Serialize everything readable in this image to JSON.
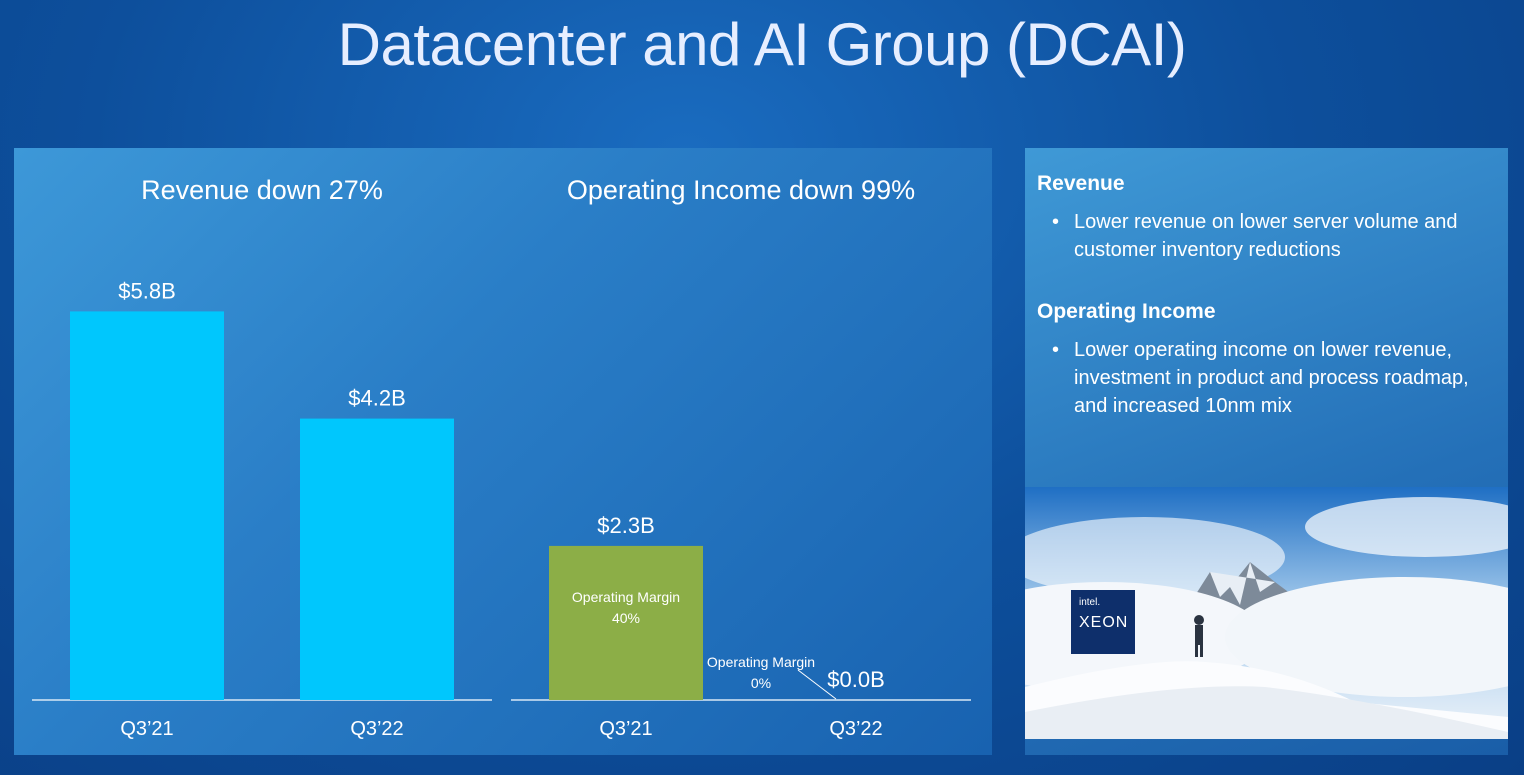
{
  "title": "Datacenter and AI Group (DCAI)",
  "chart_data": [
    {
      "type": "bar",
      "title": "Revenue down 27%",
      "categories": [
        "Q3’21",
        "Q3’22"
      ],
      "values": [
        5.8,
        4.2
      ],
      "value_labels": [
        "$5.8B",
        "$4.2B"
      ],
      "color": "#00c7fd"
    },
    {
      "type": "bar",
      "title": "Operating Income down 99%",
      "categories": [
        "Q3’21",
        "Q3’22"
      ],
      "values": [
        2.3,
        0.0
      ],
      "value_labels": [
        "$2.3B",
        "$0.0B"
      ],
      "color": "#8cae47",
      "bar_notes": [
        "Operating Margin 40%",
        "Operating Margin 0%"
      ]
    }
  ],
  "sidebar": {
    "sections": [
      {
        "heading": "Revenue",
        "bullets": [
          "Lower revenue on lower server volume and customer inventory reductions"
        ]
      },
      {
        "heading": "Operating Income",
        "bullets": [
          "Lower operating income on lower revenue, investment in product and process roadmap, and increased 10nm mix"
        ]
      }
    ]
  },
  "photo": {
    "logo_brand": "intel.",
    "logo_product": "XEON"
  }
}
